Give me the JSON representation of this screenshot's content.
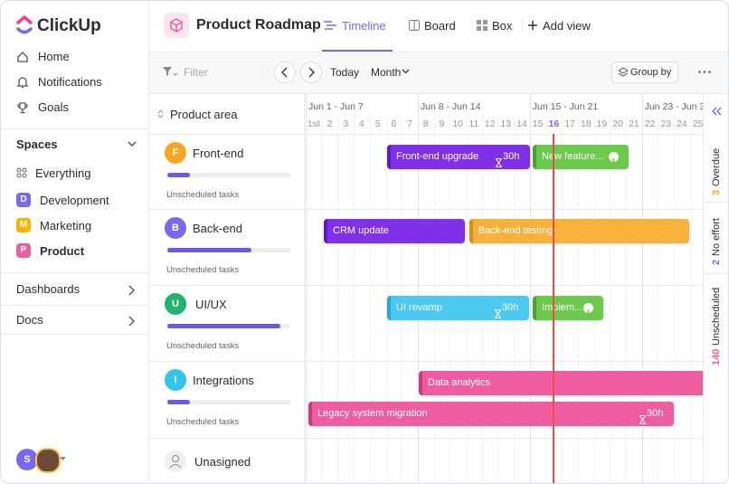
{
  "sidebar": {
    "brand": "ClickUp",
    "nav": [
      "Home",
      "Notifications",
      "Goals"
    ],
    "spaces_title": "Spaces",
    "everything": "Everything",
    "spaces": [
      {
        "initial": "D",
        "name": "Development"
      },
      {
        "initial": "M",
        "name": "Marketing"
      },
      {
        "initial": "P",
        "name": "Product"
      }
    ],
    "sections": [
      "Dashboards",
      "Docs"
    ],
    "user_initial": "S"
  },
  "header": {
    "title": "Product Roadmap",
    "views": [
      "Timeline",
      "Board",
      "Box"
    ],
    "add_view": "Add view"
  },
  "toolbar": {
    "filter": "Filter",
    "today": "Today",
    "period": "Month",
    "group_by": "Group by"
  },
  "timeline": {
    "column_header": "Product area",
    "weeks": [
      "Jun 1 - Jun 7",
      "Jun 8 - Jun 14",
      "Jun 15 - Jun 21",
      "Jun 23 - Jun 3"
    ],
    "days": [
      "1st",
      "2",
      "3",
      "4",
      "5",
      "6",
      "7",
      "8",
      "9",
      "10",
      "11",
      "12",
      "13",
      "14",
      "15",
      "16",
      "17",
      "18",
      "19",
      "20",
      "21",
      "22",
      "23",
      "24",
      "25"
    ],
    "groups": [
      {
        "initial": "F",
        "name": "Front-end",
        "note": "Unscheduled tasks"
      },
      {
        "initial": "B",
        "name": "Back-end",
        "note": "Unscheduled tasks"
      },
      {
        "initial": "U",
        "name": "UI/UX",
        "note": "Unscheduled tasks"
      },
      {
        "initial": "I",
        "name": "Integrations",
        "note": "Unscheduled tasks"
      }
    ],
    "unassigned": "Unasigned",
    "tasks": [
      {
        "name": "Front-end upgrade",
        "effort": "30h"
      },
      {
        "name": "New feature..."
      },
      {
        "name": "CRM update"
      },
      {
        "name": "Back-end testing"
      },
      {
        "name": "UI revamp",
        "effort": "30h"
      },
      {
        "name": "Implem..."
      },
      {
        "name": "Data analytics"
      },
      {
        "name": "Legacy system migration",
        "effort": "30h"
      }
    ]
  },
  "summary": [
    {
      "count": 3,
      "label": "Overdue"
    },
    {
      "count": 2,
      "label": "No effort"
    },
    {
      "count": 140,
      "label": "Unscheduled"
    }
  ]
}
